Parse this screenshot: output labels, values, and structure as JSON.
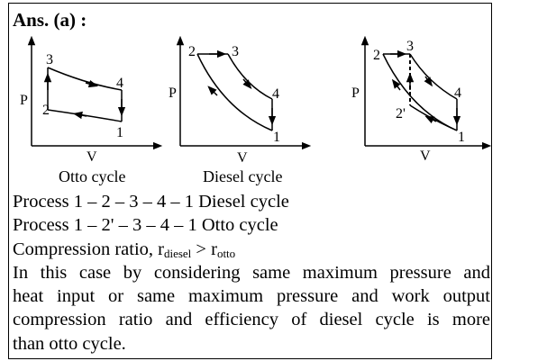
{
  "heading": "Ans. (a) :",
  "diagrams": {
    "otto": {
      "caption": "Otto cycle",
      "p_label": "P",
      "v_label": "V",
      "points": {
        "p1": "1",
        "p2": "2",
        "p3": "3",
        "p4": "4"
      }
    },
    "diesel": {
      "caption": "Diesel cycle",
      "p_label": "P",
      "v_label": "V",
      "points": {
        "p1": "1",
        "p2": "2",
        "p3": "3",
        "p4": "4"
      }
    },
    "combined": {
      "p_label": "P",
      "v_label": "V",
      "points": {
        "p1": "1",
        "p2": "2",
        "p2prime": "2'",
        "p3": "3",
        "p4": "4"
      }
    }
  },
  "text": {
    "process_diesel": "Process 1 – 2 – 3 – 4 – 1 Diesel cycle",
    "process_otto": "Process 1 – 2' – 3 – 4 – 1 Otto cycle",
    "compression_prefix": "Compression ratio, r",
    "compression_sub1": "diesel",
    "compression_mid": " > r",
    "compression_sub2": "otto",
    "para_line1": "In this case by considering same maximum pressure and",
    "para_line2": "heat input or same maximum pressure and work output",
    "para_line3": "compression ratio and efficiency of diesel cycle is more",
    "para_line4": "than otto cycle."
  }
}
